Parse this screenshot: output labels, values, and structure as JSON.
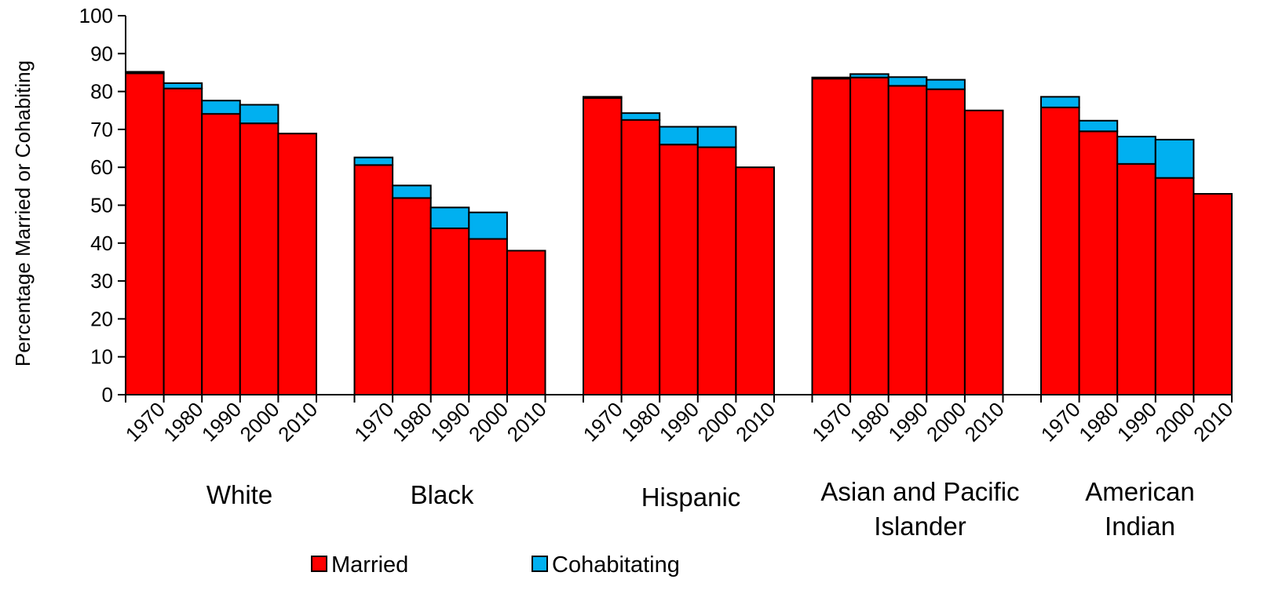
{
  "chart_data": {
    "type": "bar",
    "stacked": true,
    "ylabel": "Percentage Married or Cohabiting",
    "xlabel": "",
    "ylim": [
      0,
      100
    ],
    "yticks": [
      0,
      10,
      20,
      30,
      40,
      50,
      60,
      70,
      80,
      90,
      100
    ],
    "years": [
      "1970",
      "1980",
      "1990",
      "2000",
      "2010"
    ],
    "groups": [
      {
        "label_lines": [
          "White"
        ],
        "married": [
          84.8,
          80.8,
          74.1,
          71.6,
          68.9
        ],
        "cohabiting": [
          0.4,
          1.4,
          3.5,
          4.9,
          0
        ]
      },
      {
        "label_lines": [
          "Black"
        ],
        "married": [
          60.6,
          51.9,
          43.9,
          41.1,
          38.0
        ],
        "cohabiting": [
          2.0,
          3.3,
          5.5,
          7.0,
          0
        ]
      },
      {
        "label_lines": [
          "Hispanic"
        ],
        "married": [
          78.3,
          72.5,
          66.0,
          65.3,
          60.0
        ],
        "cohabiting": [
          0.3,
          1.8,
          4.7,
          5.4,
          0
        ]
      },
      {
        "label_lines": [
          "Asian and Pacific",
          "Islander"
        ],
        "married": [
          83.4,
          83.7,
          81.5,
          80.6,
          75.0
        ],
        "cohabiting": [
          0.3,
          0.9,
          2.3,
          2.5,
          0
        ]
      },
      {
        "label_lines": [
          "American",
          "Indian"
        ],
        "married": [
          75.8,
          69.5,
          60.9,
          57.2,
          53.0
        ],
        "cohabiting": [
          2.8,
          2.8,
          7.2,
          10.1,
          0
        ]
      }
    ],
    "series": [
      {
        "name": "Married",
        "color": "#ff0000"
      },
      {
        "name": "Cohabitating",
        "color": "#00b0f0"
      }
    ],
    "legend_position": "bottom",
    "grid": false
  }
}
